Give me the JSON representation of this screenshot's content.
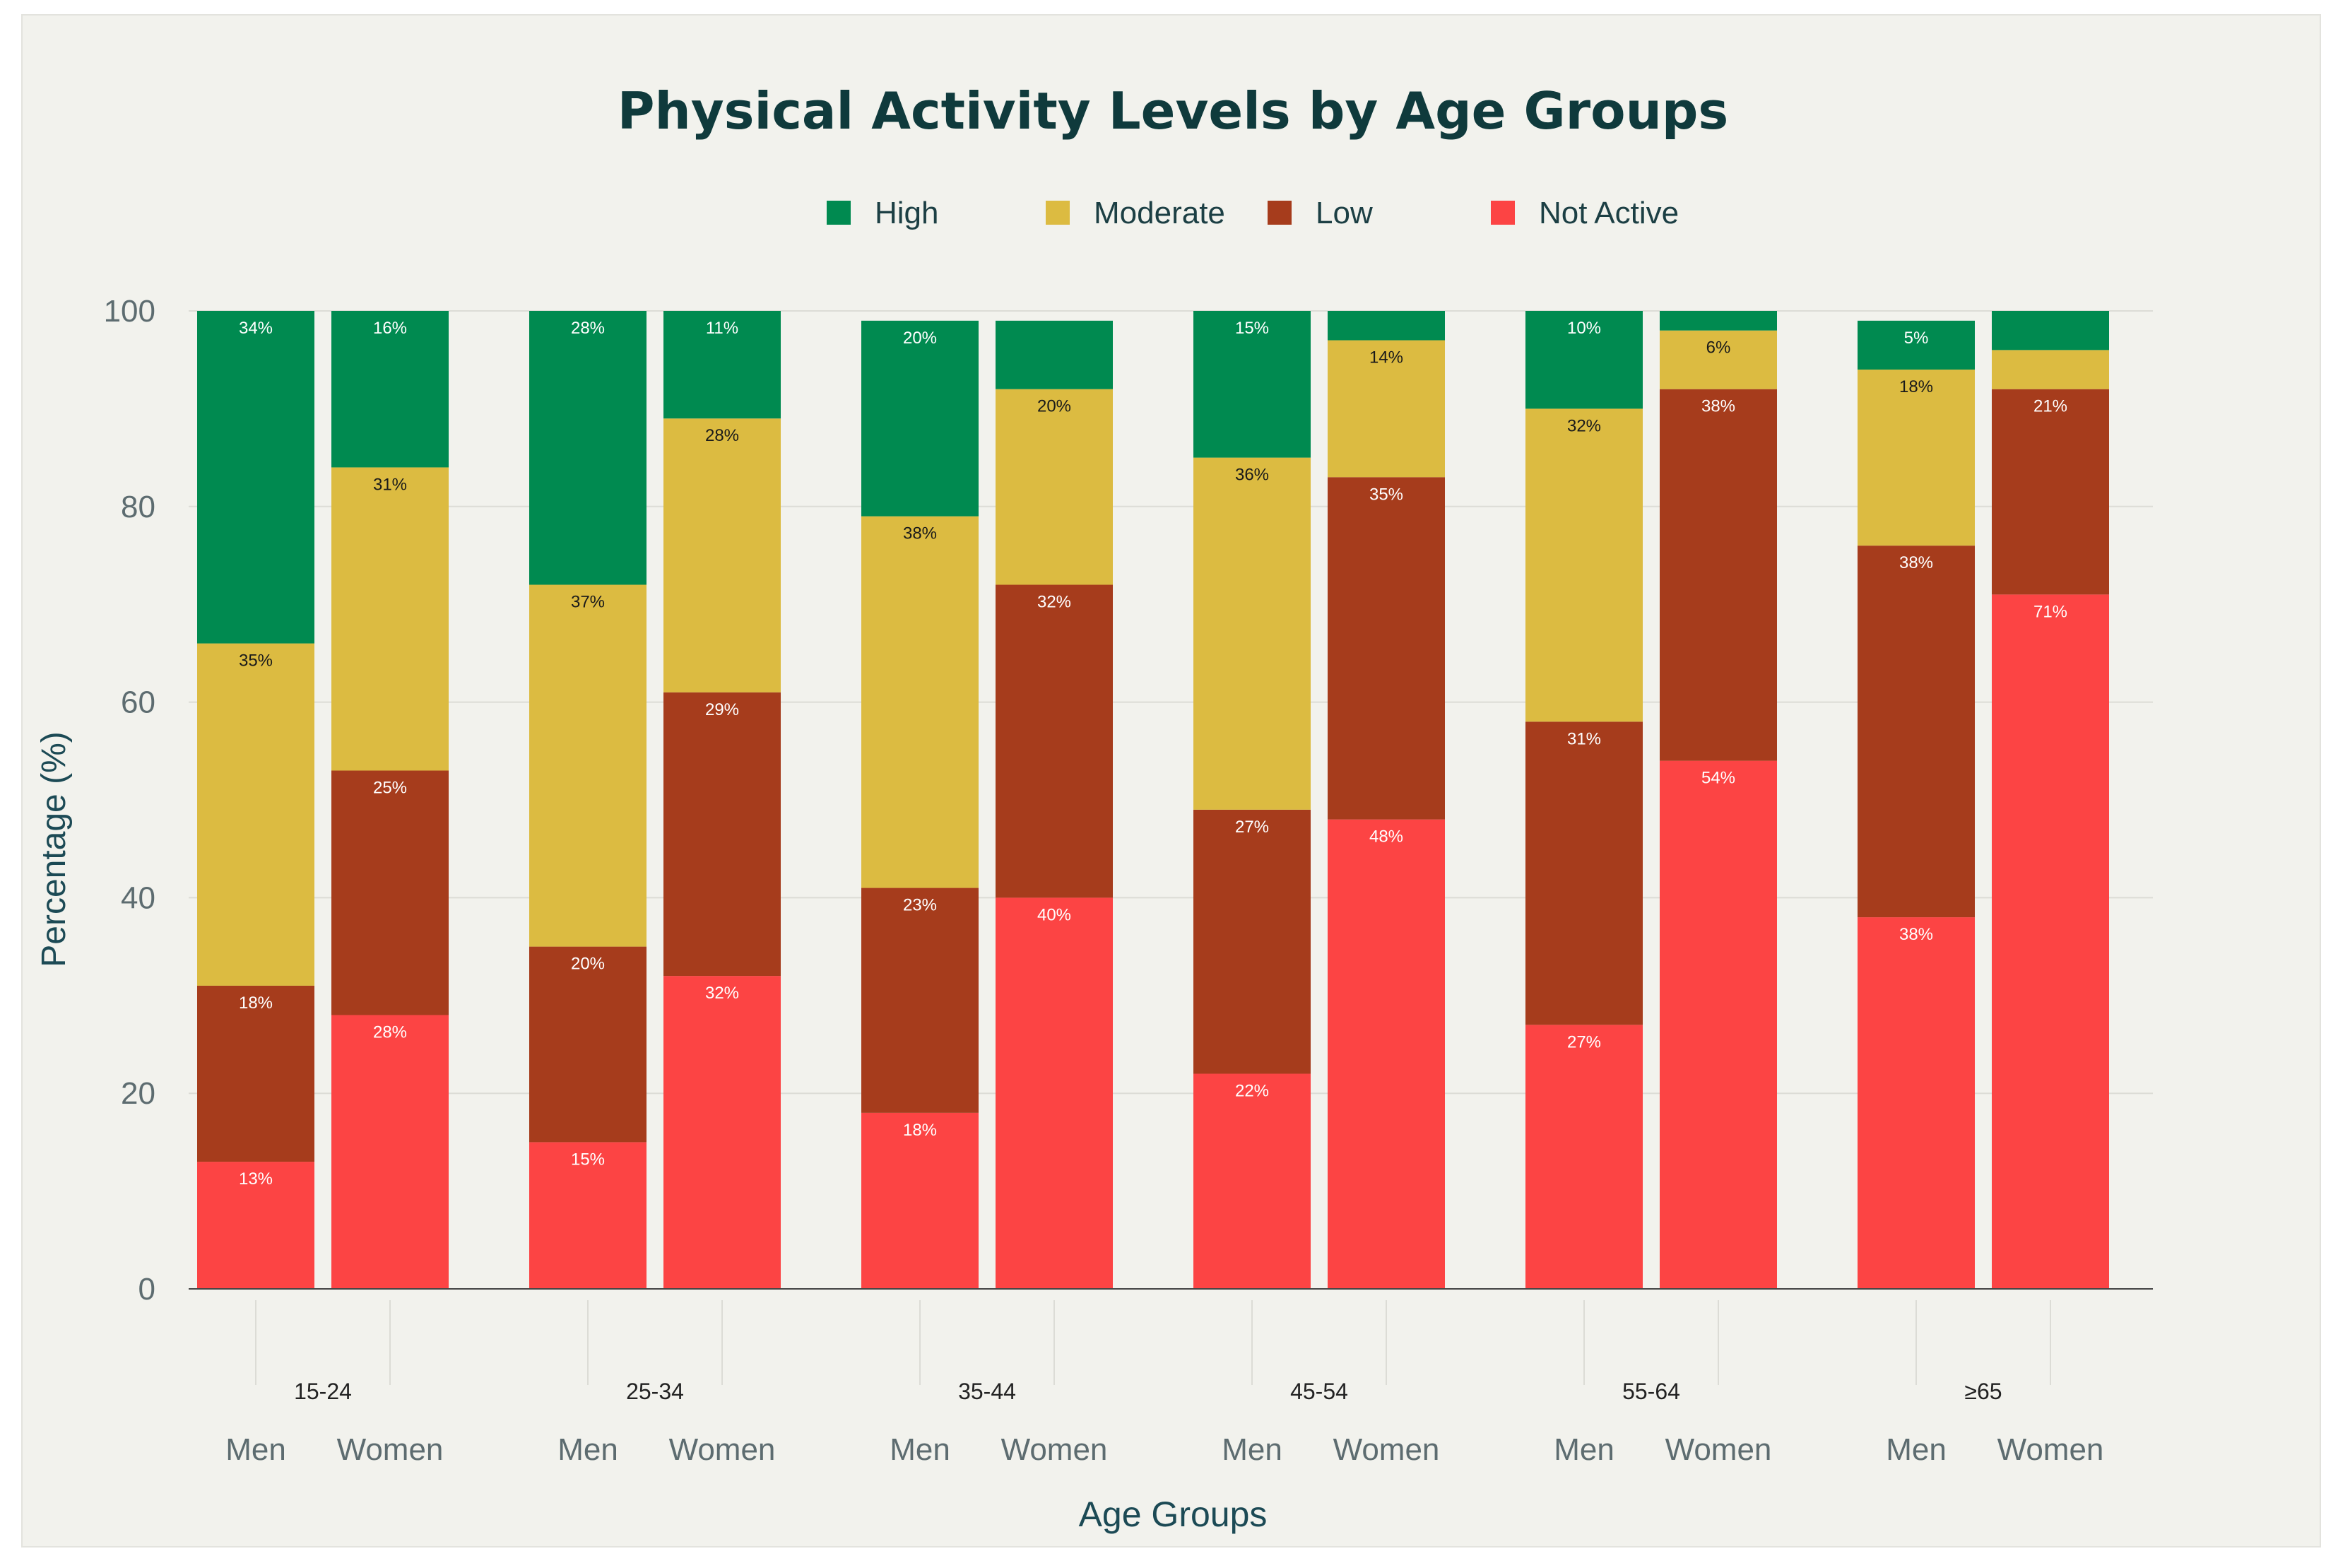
{
  "chart_data": {
    "type": "bar",
    "stacked": true,
    "title": "Physical Activity Levels by Age Groups",
    "xlabel": "Age Groups",
    "ylabel": "Percentage (%)",
    "ylim": [
      0,
      100
    ],
    "yticks": [
      0,
      20,
      40,
      60,
      80,
      100
    ],
    "grid": true,
    "legend_position": "top-center",
    "groups": [
      "15-24",
      "25-34",
      "35-44",
      "45-54",
      "55-64",
      "≥65"
    ],
    "subcategories": [
      "Men",
      "Women"
    ],
    "series": [
      {
        "name": "Not Active",
        "color": "#fc4444",
        "label_color": "#ffffff",
        "values": [
          13,
          28,
          15,
          32,
          18,
          40,
          22,
          48,
          27,
          54,
          38,
          71
        ],
        "labels": [
          "13%",
          "28%",
          "15%",
          "32%",
          "18%",
          "40%",
          "22%",
          "48%",
          "27%",
          "54%",
          "38%",
          "71%"
        ]
      },
      {
        "name": "Low",
        "color": "#a63c1c",
        "label_color": "#ffffff",
        "values": [
          18,
          25,
          20,
          29,
          23,
          32,
          27,
          35,
          31,
          38,
          38,
          21
        ],
        "labels": [
          "18%",
          "25%",
          "20%",
          "29%",
          "23%",
          "32%",
          "27%",
          "35%",
          "31%",
          "38%",
          "38%",
          "21%"
        ]
      },
      {
        "name": "Moderate",
        "color": "#dcbb41",
        "label_color": "#1a1a1a",
        "values": [
          35,
          31,
          37,
          28,
          38,
          20,
          36,
          14,
          32,
          6,
          18,
          4
        ],
        "labels": [
          "35%",
          "31%",
          "37%",
          "28%",
          "38%",
          "20%",
          "36%",
          "14%",
          "32%",
          "6%",
          "18%",
          ""
        ]
      },
      {
        "name": "High",
        "color": "#008a50",
        "label_color": "#ffffff",
        "values": [
          34,
          16,
          28,
          11,
          20,
          7,
          15,
          3,
          10,
          2,
          5,
          4
        ],
        "labels": [
          "34%",
          "16%",
          "28%",
          "11%",
          "20%",
          "",
          "15%",
          "",
          "10%",
          "",
          "5%",
          ""
        ]
      }
    ]
  }
}
